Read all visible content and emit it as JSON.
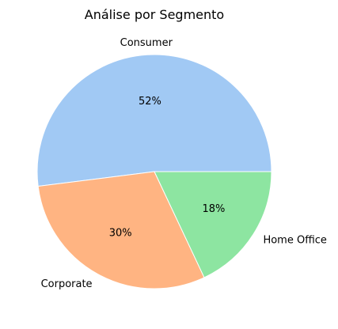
{
  "chart_data": {
    "type": "pie",
    "title": "Análise por Segmento",
    "categories": [
      "Consumer",
      "Corporate",
      "Home Office"
    ],
    "values": [
      52,
      30,
      18
    ],
    "value_labels": [
      "52%",
      "30%",
      "18%"
    ],
    "colors": [
      "#a1c9f4",
      "#ffb482",
      "#8de5a1"
    ],
    "start_angle_deg": 0,
    "direction": "counterclockwise",
    "legend": "none"
  }
}
